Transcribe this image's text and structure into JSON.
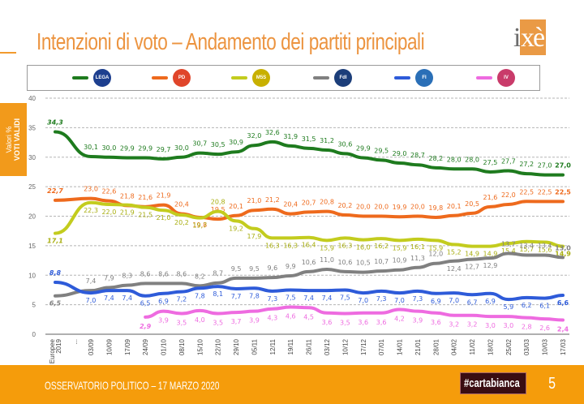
{
  "header": {
    "title": "Intenzioni di voto – Andamento dei partiti principali",
    "logo_text_i": "i",
    "logo_text_xe": "xè"
  },
  "side_label": {
    "line1": "Valori %",
    "line2": "VOTI VALIDI"
  },
  "legend": [
    {
      "party": "Lega Salvini",
      "logo": "LEGA",
      "color": "#1e7b1e",
      "logo_color": "#1d3f8f"
    },
    {
      "party": "PD",
      "logo": "PD",
      "color": "#ee6a1d",
      "logo_color": "#e0452a"
    },
    {
      "party": "Movimento 5 Stelle",
      "logo": "M5S",
      "color": "#c3cc1e",
      "logo_color": "#c8b000"
    },
    {
      "party": "Fratelli d'Italia",
      "logo": "FdI",
      "color": "#808080",
      "logo_color": "#1c3e7a"
    },
    {
      "party": "Forza Italia",
      "logo": "FI",
      "color": "#2e5bd9",
      "logo_color": "#2a6fb7"
    },
    {
      "party": "Italia Viva",
      "logo": "IV",
      "color": "#ee6be0",
      "logo_color": "#c93b6a"
    }
  ],
  "footer": {
    "text": "OSSERVATORIO POLITICO – 17 MARZO 2020",
    "badge": "#cartabianca",
    "page": "5"
  },
  "chart_data": {
    "type": "line",
    "title": "Intenzioni di voto – Andamento dei partiti principali",
    "ylabel": "Valori % VOTI VALIDI",
    "xlabel": "",
    "ylim": [
      0,
      40
    ],
    "yticks": [
      0,
      5,
      10,
      15,
      20,
      25,
      30,
      35,
      40
    ],
    "grid": true,
    "legend_position": "top",
    "categories": [
      "Europee 2019",
      "...",
      "03/09",
      "10/09",
      "17/09",
      "24/09",
      "01/10",
      "08/10",
      "15/10",
      "22/10",
      "29/10",
      "05/11",
      "12/11",
      "19/11",
      "26/11",
      "03/12",
      "10/12",
      "17/12",
      "07/01",
      "14/01",
      "21/01",
      "28/01",
      "04/02",
      "11/02",
      "18/02",
      "25/02",
      "03/03",
      "10/03",
      "17/03"
    ],
    "series": [
      {
        "name": "Lega",
        "color": "#1e7b1e",
        "values": [
          34.3,
          null,
          30.1,
          30.0,
          29.9,
          29.9,
          29.7,
          30.0,
          30.7,
          30.5,
          30.9,
          32.0,
          32.6,
          31.9,
          31.5,
          31.2,
          30.6,
          29.9,
          29.5,
          29.0,
          28.7,
          28.2,
          28.0,
          28.0,
          27.5,
          27.7,
          27.2,
          27.0,
          27.0
        ]
      },
      {
        "name": "PD",
        "color": "#ee6a1d",
        "values": [
          22.7,
          null,
          23.0,
          22.6,
          21.8,
          21.6,
          21.9,
          20.4,
          19.8,
          19.5,
          20.1,
          21.0,
          21.2,
          20.4,
          20.7,
          20.8,
          20.2,
          20.0,
          20.0,
          19.9,
          20.0,
          19.8,
          20.1,
          20.5,
          21.6,
          22.0,
          22.5,
          22.5,
          22.5
        ]
      },
      {
        "name": "M5S",
        "color": "#c3cc1e",
        "values": [
          17.1,
          null,
          22.3,
          22.0,
          21.9,
          21.5,
          21.0,
          20.2,
          19.7,
          20.8,
          19.2,
          17.9,
          16.3,
          16.3,
          16.4,
          15.9,
          16.3,
          16.0,
          16.2,
          15.9,
          16.1,
          15.9,
          15.2,
          14.9,
          14.9,
          15.4,
          15.7,
          15.6,
          14.9
        ]
      },
      {
        "name": "FdI",
        "color": "#808080",
        "values": [
          6.5,
          null,
          7.4,
          7.9,
          8.3,
          8.6,
          8.6,
          8.6,
          8.2,
          8.7,
          9.5,
          9.5,
          9.6,
          9.9,
          10.6,
          11.0,
          10.6,
          10.5,
          10.7,
          10.9,
          11.3,
          12.0,
          12.4,
          12.7,
          12.9,
          13.7,
          13.4,
          13.4,
          13.0
        ]
      },
      {
        "name": "Forza Italia",
        "color": "#2e5bd9",
        "values": [
          8.8,
          null,
          7.0,
          7.4,
          7.4,
          6.5,
          6.9,
          7.2,
          7.8,
          8.1,
          7.7,
          7.8,
          7.3,
          7.5,
          7.4,
          7.4,
          7.5,
          7.0,
          7.3,
          7.0,
          7.3,
          6.9,
          7.0,
          6.7,
          6.9,
          5.9,
          6.2,
          6.1,
          6.6
        ]
      },
      {
        "name": "Italia Viva",
        "color": "#ee6be0",
        "values": [
          null,
          null,
          null,
          null,
          null,
          2.9,
          3.9,
          3.5,
          4.0,
          3.5,
          3.7,
          3.9,
          4.3,
          4.6,
          4.5,
          3.6,
          3.5,
          3.6,
          3.6,
          4.2,
          3.9,
          3.6,
          3.2,
          3.2,
          3.0,
          3.0,
          2.8,
          2.6,
          2.4
        ]
      }
    ]
  }
}
